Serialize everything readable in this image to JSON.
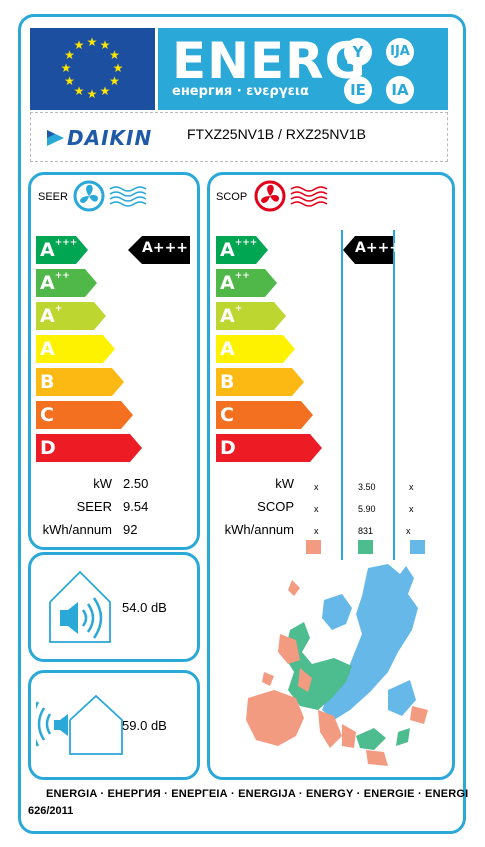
{
  "header": {
    "energy_word": "ENERG",
    "energy_sub": "енергия · ενεργεια",
    "circles": [
      "Y",
      "IJA",
      "IE",
      "IA"
    ],
    "brand": "DAIKIN",
    "model": "FTXZ25NV1B / RXZ25NV1B"
  },
  "classes": [
    "A+++",
    "A++",
    "A+",
    "A",
    "B",
    "C",
    "D"
  ],
  "class_colors": [
    "#00a651",
    "#50b848",
    "#bed630",
    "#fff200",
    "#fdb913",
    "#f37021",
    "#ed1c24"
  ],
  "seer": {
    "title": "SEER",
    "rating": "A+++",
    "rows": [
      {
        "label": "kW",
        "value": "2.50"
      },
      {
        "label": "SEER",
        "value": "9.54"
      },
      {
        "label": "kWh/annum",
        "value": "92"
      }
    ]
  },
  "scop": {
    "title": "SCOP",
    "rating": "A+++",
    "labels": [
      "kW",
      "SCOP",
      "kWh/annum"
    ],
    "col_colder": [
      "x",
      "x",
      "x"
    ],
    "col_average": [
      "3.50",
      "5.90",
      "831"
    ],
    "col_warmer": [
      "x",
      "x",
      "x"
    ],
    "zone_colors": [
      "#f29b80",
      "#4dbc8f",
      "#66b8e8"
    ]
  },
  "noise": {
    "indoor": "54.0",
    "outdoor": "59.0",
    "unit": "dB"
  },
  "footer": {
    "line1": "ENERGIA · ЕНЕРГИЯ · ΕΝΕΡΓΕΙΑ · ENERGIJA · ENERGY · ENERGIE · ENERGI",
    "line2": "626/2011"
  }
}
